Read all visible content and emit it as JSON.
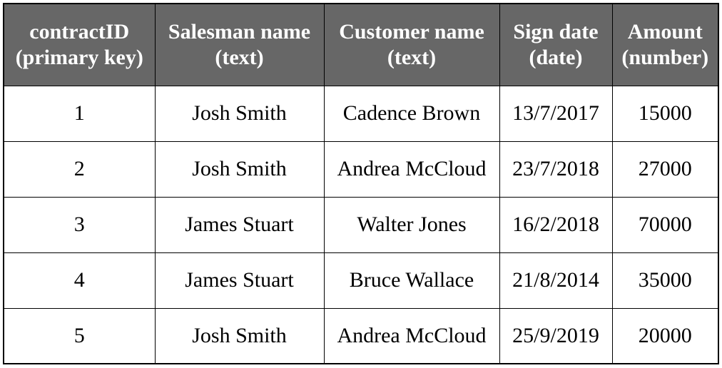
{
  "table": {
    "headers": [
      {
        "line1": "contractID",
        "line2": "(primary key)"
      },
      {
        "line1": "Salesman name",
        "line2": "(text)"
      },
      {
        "line1": "Customer name",
        "line2": "(text)"
      },
      {
        "line1": "Sign date",
        "line2": "(date)"
      },
      {
        "line1": "Amount",
        "line2": "(number)"
      }
    ],
    "rows": [
      [
        "1",
        "Josh Smith",
        "Cadence Brown",
        "13/7/2017",
        "15000"
      ],
      [
        "2",
        "Josh Smith",
        "Andrea McCloud",
        "23/7/2018",
        "27000"
      ],
      [
        "3",
        "James Stuart",
        "Walter Jones",
        "16/2/2018",
        "70000"
      ],
      [
        "4",
        "James Stuart",
        "Bruce Wallace",
        "21/8/2014",
        "35000"
      ],
      [
        "5",
        "Josh Smith",
        "Andrea McCloud",
        "25/9/2019",
        "20000"
      ]
    ]
  },
  "colors": {
    "header_background": "#676767",
    "header_text": "#ffffff",
    "border": "#000000",
    "body_text": "#000000"
  }
}
